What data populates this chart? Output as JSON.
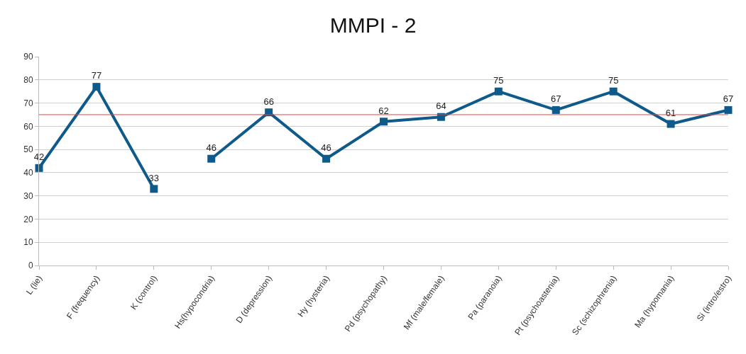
{
  "chart_data": {
    "type": "line",
    "title": "MMPI - 2",
    "categories": [
      "L (lie)",
      "F (frequency)",
      "K (control)",
      "Hs(hypocondria)",
      "D (depression)",
      "Hy (hysteria)",
      "Pd (psychopathy)",
      "Mf (male/female)",
      "Pa (paranoia)",
      "Pt (psychoastenia)",
      "Sc (schizophrenia)",
      "Ma (hypomania)",
      "Si (intro/estro)"
    ],
    "series": [
      {
        "color": "#0e5a8a",
        "values": [
          42,
          77,
          33,
          null,
          null,
          null,
          null,
          null,
          null,
          null,
          null,
          null,
          null
        ]
      },
      {
        "color": "#0e5a8a",
        "values": [
          null,
          null,
          null,
          46,
          66,
          46,
          62,
          64,
          75,
          67,
          75,
          61,
          67
        ]
      }
    ],
    "ylim": [
      0,
      90
    ],
    "yticks": [
      0,
      10,
      20,
      30,
      40,
      50,
      60,
      70,
      80,
      90
    ],
    "ref_lines": [
      {
        "axis": "y",
        "value": 65,
        "color": "#e8423f"
      }
    ],
    "grid": "y",
    "marker": "square",
    "line_style": "solid",
    "data_labels": true
  }
}
